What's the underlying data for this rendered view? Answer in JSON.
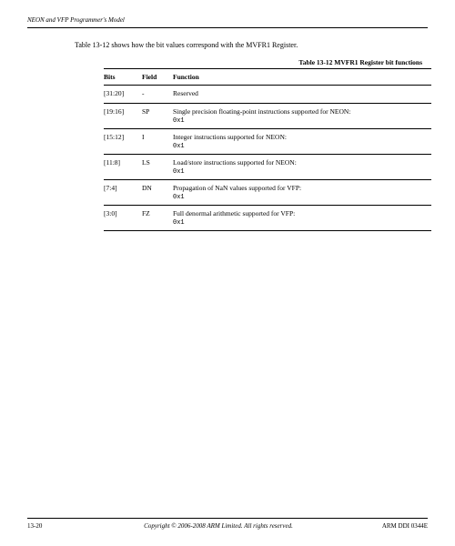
{
  "header": {
    "section_title": "NEON and VFP Programmer's Model"
  },
  "intro": "Table 13-12 shows how the bit values correspond with the MVFR1 Register.",
  "table": {
    "caption": "Table 13-12 MVFR1 Register bit functions",
    "columns": [
      "Bits",
      "Field",
      "Function"
    ],
    "rows": [
      {
        "bits": "[31:20]",
        "field": "-",
        "function": "Reserved",
        "value": ""
      },
      {
        "bits": "[19:16]",
        "field": "SP",
        "function": "Single precision floating-point instructions supported for NEON:",
        "value": "0x1"
      },
      {
        "bits": "[15:12]",
        "field": "I",
        "function": "Integer instructions supported for NEON:",
        "value": "0x1"
      },
      {
        "bits": "[11:8]",
        "field": "LS",
        "function": "Load/store instructions supported for NEON:",
        "value": "0x1"
      },
      {
        "bits": "[7:4]",
        "field": "DN",
        "function": "Propagation of NaN values supported for VFP:",
        "value": "0x1"
      },
      {
        "bits": "[3:0]",
        "field": "FZ",
        "function": "Full denormal arithmetic supported for VFP:",
        "value": "0x1"
      }
    ]
  },
  "footer": {
    "page": "13-20",
    "copyright": "Copyright © 2006-2008 ARM Limited. All rights reserved.",
    "doc_id": "ARM DDI 0344E"
  }
}
